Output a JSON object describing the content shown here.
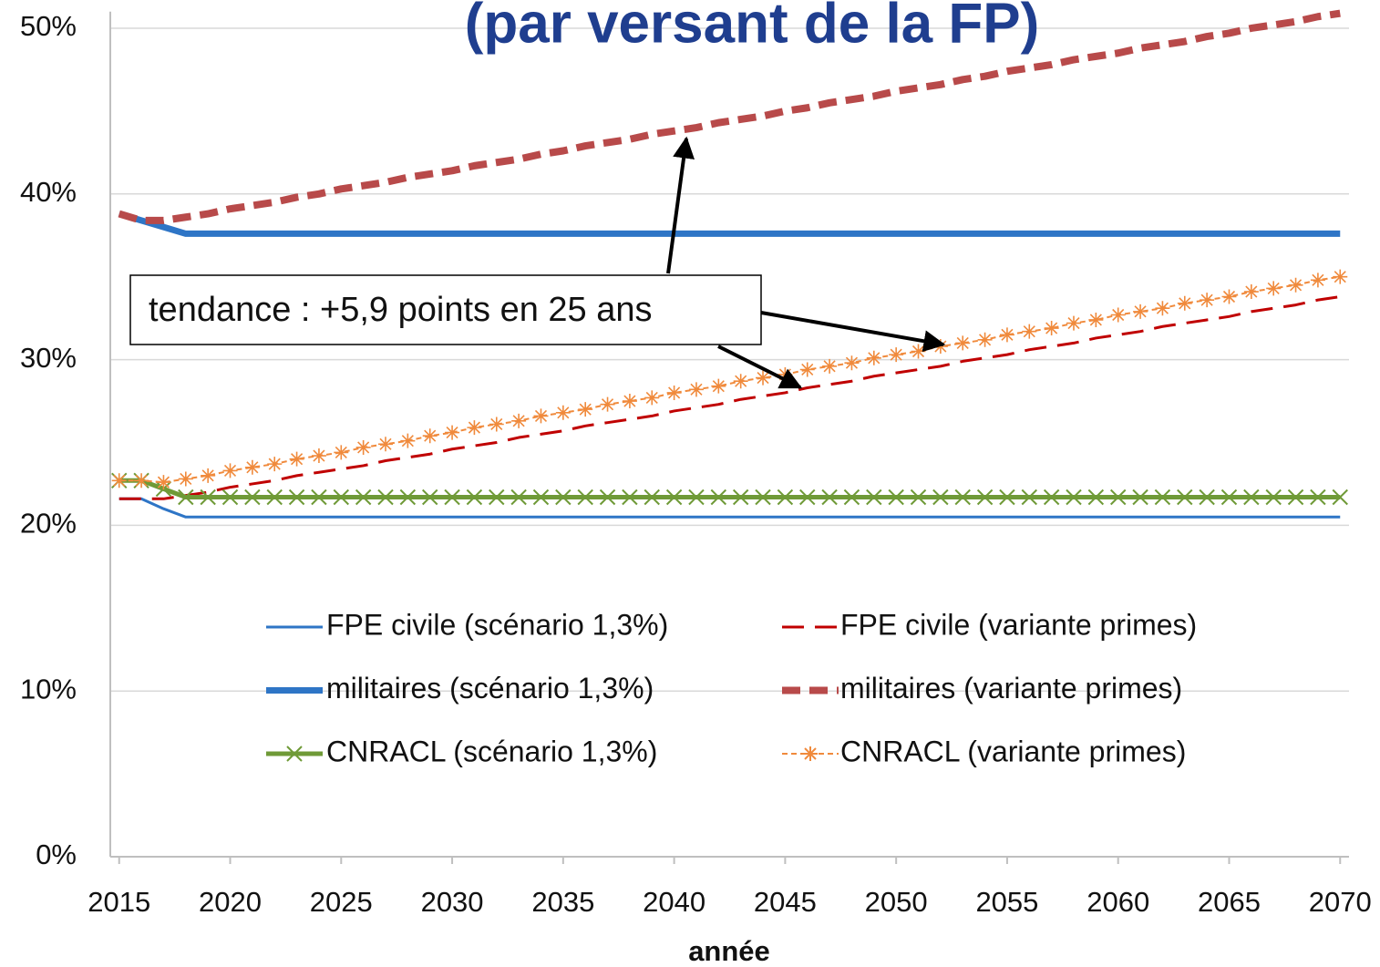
{
  "chart_data": {
    "type": "line",
    "title": "(par versant de la FP)",
    "xlabel": "année",
    "annotation": "tendance : +5,9 points en 25 ans",
    "x": [
      2015,
      2016,
      2017,
      2018,
      2019,
      2020,
      2021,
      2022,
      2023,
      2024,
      2025,
      2026,
      2027,
      2028,
      2029,
      2030,
      2031,
      2032,
      2033,
      2034,
      2035,
      2036,
      2037,
      2038,
      2039,
      2040,
      2041,
      2042,
      2043,
      2044,
      2045,
      2046,
      2047,
      2048,
      2049,
      2050,
      2051,
      2052,
      2053,
      2054,
      2055,
      2056,
      2057,
      2058,
      2059,
      2060,
      2061,
      2062,
      2063,
      2064,
      2065,
      2066,
      2067,
      2068,
      2069,
      2070
    ],
    "xlim": [
      2014.6,
      2070.4
    ],
    "xticks": [
      2015,
      2020,
      2025,
      2030,
      2035,
      2040,
      2045,
      2050,
      2055,
      2060,
      2065,
      2070
    ],
    "ylim": [
      0,
      51
    ],
    "yticks": [
      {
        "value": 0,
        "label": "0%"
      },
      {
        "value": 10,
        "label": "10%"
      },
      {
        "value": 20,
        "label": "20%"
      },
      {
        "value": 30,
        "label": "30%"
      },
      {
        "value": 40,
        "label": "40%"
      },
      {
        "value": 50,
        "label": "50%"
      }
    ],
    "grid": true,
    "series": [
      {
        "name": "FPE civile (scénario 1,3%)",
        "color": "#2e75c6",
        "width": 3,
        "dash": "none",
        "marker": "none",
        "values": [
          21.6,
          21.6,
          21.0,
          20.5,
          20.5,
          20.5,
          20.5,
          20.5,
          20.5,
          20.5,
          20.5,
          20.5,
          20.5,
          20.5,
          20.5,
          20.5,
          20.5,
          20.5,
          20.5,
          20.5,
          20.5,
          20.5,
          20.5,
          20.5,
          20.5,
          20.5,
          20.5,
          20.5,
          20.5,
          20.5,
          20.5,
          20.5,
          20.5,
          20.5,
          20.5,
          20.5,
          20.5,
          20.5,
          20.5,
          20.5,
          20.5,
          20.5,
          20.5,
          20.5,
          20.5,
          20.5,
          20.5,
          20.5,
          20.5,
          20.5,
          20.5,
          20.5,
          20.5,
          20.5,
          20.5,
          20.5
        ]
      },
      {
        "name": "FPE civile (variante primes)",
        "color": "#c00000",
        "width": 3,
        "dash": "24,12",
        "marker": "none",
        "values": [
          21.6,
          21.6,
          21.6,
          21.8,
          22.0,
          22.3,
          22.5,
          22.7,
          23.0,
          23.2,
          23.4,
          23.6,
          23.9,
          24.1,
          24.3,
          24.6,
          24.8,
          25.0,
          25.3,
          25.5,
          25.7,
          26.0,
          26.2,
          26.4,
          26.6,
          26.9,
          27.1,
          27.3,
          27.6,
          27.8,
          28.0,
          28.3,
          28.5,
          28.7,
          29.0,
          29.2,
          29.4,
          29.6,
          29.9,
          30.1,
          30.3,
          30.6,
          30.8,
          31.0,
          31.3,
          31.5,
          31.7,
          32.0,
          32.2,
          32.4,
          32.6,
          32.9,
          33.1,
          33.3,
          33.6,
          33.8
        ]
      },
      {
        "name": "militaires (scénario 1,3%)",
        "color": "#2e75c6",
        "width": 7,
        "dash": "none",
        "marker": "none",
        "values": [
          38.8,
          38.4,
          38.0,
          37.6,
          37.6,
          37.6,
          37.6,
          37.6,
          37.6,
          37.6,
          37.6,
          37.6,
          37.6,
          37.6,
          37.6,
          37.6,
          37.6,
          37.6,
          37.6,
          37.6,
          37.6,
          37.6,
          37.6,
          37.6,
          37.6,
          37.6,
          37.6,
          37.6,
          37.6,
          37.6,
          37.6,
          37.6,
          37.6,
          37.6,
          37.6,
          37.6,
          37.6,
          37.6,
          37.6,
          37.6,
          37.6,
          37.6,
          37.6,
          37.6,
          37.6,
          37.6,
          37.6,
          37.6,
          37.6,
          37.6,
          37.6,
          37.6,
          37.6,
          37.6,
          37.6,
          37.6
        ]
      },
      {
        "name": "militaires (variante primes)",
        "color": "#b84a4a",
        "width": 8,
        "dash": "20,10",
        "marker": "none",
        "values": [
          38.8,
          38.4,
          38.4,
          38.6,
          38.8,
          39.1,
          39.3,
          39.5,
          39.8,
          40.0,
          40.3,
          40.5,
          40.7,
          41.0,
          41.2,
          41.4,
          41.7,
          41.9,
          42.1,
          42.4,
          42.6,
          42.9,
          43.1,
          43.3,
          43.6,
          43.8,
          44.0,
          44.3,
          44.5,
          44.7,
          45.0,
          45.2,
          45.5,
          45.7,
          45.9,
          46.2,
          46.4,
          46.6,
          46.9,
          47.1,
          47.4,
          47.6,
          47.8,
          48.1,
          48.3,
          48.5,
          48.8,
          49.0,
          49.2,
          49.5,
          49.7,
          50.0,
          50.2,
          50.4,
          50.7,
          50.9
        ]
      },
      {
        "name": "CNRACL (scénario 1,3%)",
        "color": "#6f9a37",
        "width": 5,
        "dash": "none",
        "marker": "x",
        "values": [
          22.7,
          22.7,
          22.2,
          21.7,
          21.7,
          21.7,
          21.7,
          21.7,
          21.7,
          21.7,
          21.7,
          21.7,
          21.7,
          21.7,
          21.7,
          21.7,
          21.7,
          21.7,
          21.7,
          21.7,
          21.7,
          21.7,
          21.7,
          21.7,
          21.7,
          21.7,
          21.7,
          21.7,
          21.7,
          21.7,
          21.7,
          21.7,
          21.7,
          21.7,
          21.7,
          21.7,
          21.7,
          21.7,
          21.7,
          21.7,
          21.7,
          21.7,
          21.7,
          21.7,
          21.7,
          21.7,
          21.7,
          21.7,
          21.7,
          21.7,
          21.7,
          21.7,
          21.7,
          21.7,
          21.7,
          21.7
        ]
      },
      {
        "name": "CNRACL (variante primes)",
        "color": "#f08a3c",
        "width": 2,
        "dash": "6,4",
        "marker": "star",
        "values": [
          22.7,
          22.7,
          22.6,
          22.8,
          23.0,
          23.3,
          23.5,
          23.7,
          24.0,
          24.2,
          24.4,
          24.7,
          24.9,
          25.1,
          25.4,
          25.6,
          25.9,
          26.1,
          26.3,
          26.6,
          26.8,
          27.0,
          27.3,
          27.5,
          27.7,
          28.0,
          28.2,
          28.4,
          28.7,
          28.9,
          29.1,
          29.4,
          29.6,
          29.8,
          30.1,
          30.3,
          30.5,
          30.8,
          31.0,
          31.2,
          31.5,
          31.7,
          31.9,
          32.2,
          32.4,
          32.7,
          32.9,
          33.1,
          33.4,
          33.6,
          33.8,
          34.1,
          34.3,
          34.5,
          34.8,
          35.0
        ]
      }
    ]
  }
}
